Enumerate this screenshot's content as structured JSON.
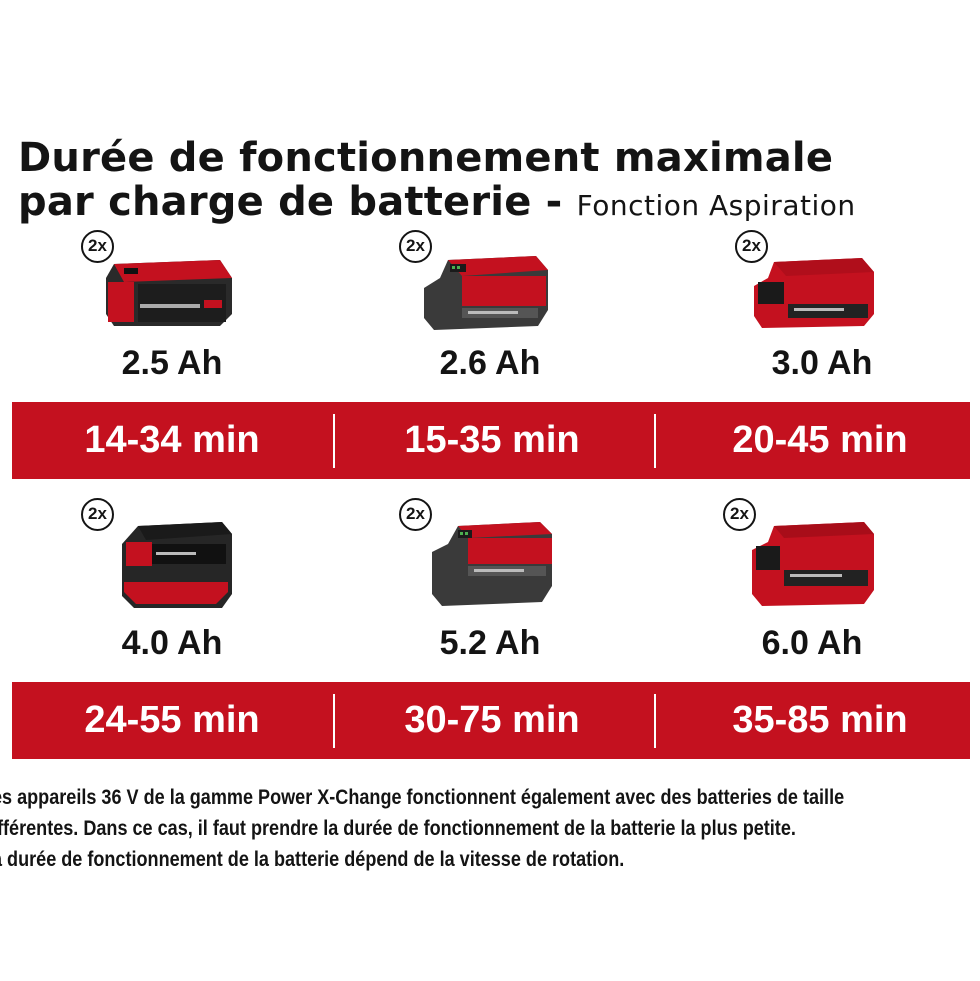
{
  "title": {
    "line1": "Durée de fonctionnement maximale",
    "line2": "par charge de batterie -",
    "subtitle": "Fonction Aspiration"
  },
  "colors": {
    "accent": "#c4111f",
    "text": "#141414"
  },
  "rows": [
    {
      "items": [
        {
          "qty": "2x",
          "capacity": "2.5 Ah",
          "runtime": "14-34 min",
          "icon": "battery-2-5ah-icon"
        },
        {
          "qty": "2x",
          "capacity": "2.6 Ah",
          "runtime": "15-35 min",
          "icon": "battery-2-6ah-icon"
        },
        {
          "qty": "2x",
          "capacity": "3.0 Ah",
          "runtime": "20-45 min",
          "icon": "battery-3-0ah-icon"
        }
      ]
    },
    {
      "items": [
        {
          "qty": "2x",
          "capacity": "4.0 Ah",
          "runtime": "24-55 min",
          "icon": "battery-4-0ah-icon"
        },
        {
          "qty": "2x",
          "capacity": "5.2 Ah",
          "runtime": "30-75 min",
          "icon": "battery-5-2ah-icon"
        },
        {
          "qty": "2x",
          "capacity": "6.0 Ah",
          "runtime": "35-85 min",
          "icon": "battery-6-0ah-icon"
        }
      ]
    }
  ],
  "notes": [
    "es appareils 36 V de la gamme Power X-Change fonctionnent également avec des batteries de taille",
    "ifférentes. Dans ce cas, il faut prendre la durée de fonctionnement de la batterie la plus petite.",
    "a durée de fonctionnement de la batterie dépend de la vitesse de rotation."
  ]
}
